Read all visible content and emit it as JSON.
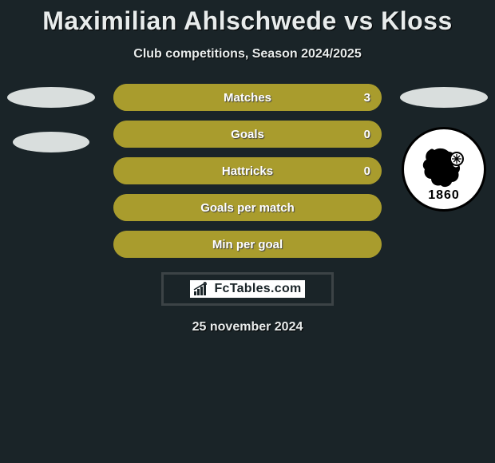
{
  "title": "Maximilian Ahlschwede vs Kloss",
  "subtitle": "Club competitions, Season 2024/2025",
  "footer_date": "25 november 2024",
  "brand": "FcTables.com",
  "colors": {
    "left": "#a99c2d",
    "right": "#a99c2d",
    "background": "#1a2428",
    "bar_track": "#a99c2d"
  },
  "badge": {
    "year": "1860"
  },
  "stats": [
    {
      "label": "Matches",
      "value_right": "3",
      "left_pct": 0,
      "right_pct": 100
    },
    {
      "label": "Goals",
      "value_right": "0",
      "left_pct": 50,
      "right_pct": 50
    },
    {
      "label": "Hattricks",
      "value_right": "0",
      "left_pct": 50,
      "right_pct": 50
    },
    {
      "label": "Goals per match",
      "value_right": "",
      "left_pct": 50,
      "right_pct": 50
    },
    {
      "label": "Min per goal",
      "value_right": "",
      "left_pct": 50,
      "right_pct": 50
    }
  ]
}
